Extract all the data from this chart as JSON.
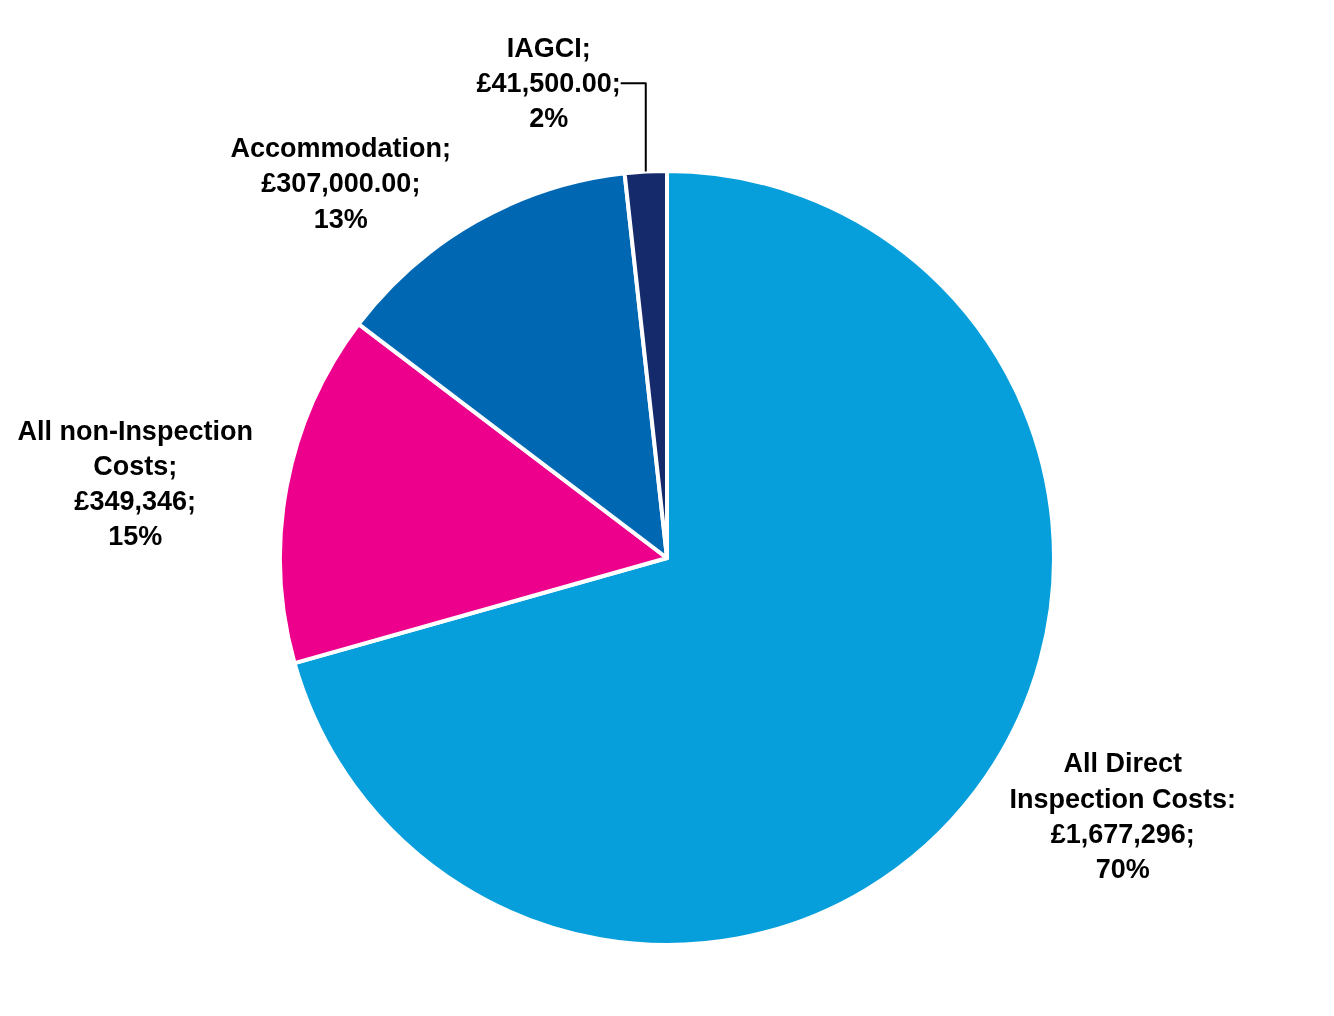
{
  "chart_data": {
    "type": "pie",
    "categories": [
      "All Direct Inspection Costs",
      "All non-Inspection Costs",
      "Accommodation",
      "IAGCI"
    ],
    "values": [
      1677296,
      349346,
      307000,
      41500
    ],
    "colors": [
      "#069fdb",
      "#ec008c",
      "#0068b3",
      "#142a6b"
    ],
    "value_labels": [
      ":\n£1,677,296;\n70%",
      ";\n£349,346;\n15%",
      ";\n£307,000.00;\n13%",
      ";\n£41,500.00;\n2%"
    ],
    "legend": false
  }
}
